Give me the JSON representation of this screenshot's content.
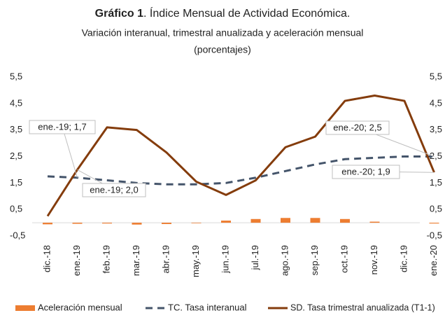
{
  "chart_data": {
    "type": "combo",
    "title_prefix": "Gráfico 1",
    "title": ". Índice Mensual de Actividad Económica.",
    "subtitle": "Variación interanual, trimestral anualizada y aceleración mensual",
    "subtitle2": "(porcentajes)",
    "categories": [
      "dic.-18",
      "ene.-19",
      "feb.-19",
      "mar.-19",
      "abr.-19",
      "may.-19",
      "jun.-19",
      "jul.-19",
      "ago.-19",
      "sep.-19",
      "oct.-19",
      "nov.-19",
      "dic.-19",
      "ene.-20"
    ],
    "series": [
      {
        "name": "Aceleración mensual",
        "type": "bar",
        "color": "#ed7d31",
        "values": [
          -0.06,
          -0.04,
          -0.03,
          -0.07,
          -0.05,
          -0.02,
          0.08,
          0.14,
          0.18,
          0.18,
          0.14,
          0.04,
          0,
          -0.03
        ]
      },
      {
        "name": "TC. Tasa interanual",
        "type": "line",
        "dash": true,
        "color": "#44546a",
        "values": [
          1.75,
          1.7,
          1.6,
          1.5,
          1.45,
          1.45,
          1.5,
          1.7,
          1.95,
          2.2,
          2.4,
          2.45,
          2.5,
          2.5
        ]
      },
      {
        "name": "SD. Tasa trimestral anualizada (T1-1)",
        "type": "line",
        "dash": false,
        "color": "#843c0c",
        "values": [
          0.25,
          2.0,
          3.6,
          3.5,
          2.65,
          1.55,
          1.05,
          1.6,
          2.85,
          3.25,
          4.6,
          4.8,
          4.6,
          1.9
        ]
      }
    ],
    "ylim": [
      -0.5,
      5.5
    ],
    "yticks": [
      {
        "value": -0.5,
        "label": "-0,5"
      },
      {
        "value": 0.5,
        "label": "0,5"
      },
      {
        "value": 1.5,
        "label": "1,5"
      },
      {
        "value": 2.5,
        "label": "2,5"
      },
      {
        "value": 3.5,
        "label": "3,5"
      },
      {
        "value": 4.5,
        "label": "4,5"
      },
      {
        "value": 5.5,
        "label": "5,5"
      }
    ],
    "y2lim": [
      -0.5,
      5.5
    ],
    "y2ticks": [
      {
        "value": -0.5,
        "label": "-0,5"
      },
      {
        "value": 0.5,
        "label": "0,5"
      },
      {
        "value": 1.5,
        "label": "1,5"
      },
      {
        "value": 2.5,
        "label": "2,5"
      },
      {
        "value": 3.5,
        "label": "3,5"
      },
      {
        "value": 4.5,
        "label": "4,5"
      },
      {
        "value": 5.5,
        "label": "5,5"
      }
    ],
    "annotations": [
      "ene.-19; 1,7",
      "ene.-19; 2,0",
      "ene.-20; 2,5",
      "ene.-20; 1,9"
    ]
  }
}
